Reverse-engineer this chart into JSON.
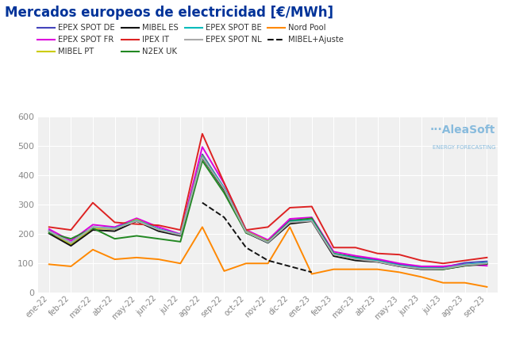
{
  "title": "Mercados europeos de electricidad [€/MWh]",
  "title_color": "#003399",
  "background_color": "#ffffff",
  "plot_bg_color": "#f0f0f0",
  "x_labels": [
    "ene-22",
    "feb-22",
    "mar-22",
    "abr-22",
    "may-22",
    "jun-22",
    "jul-22",
    "ago-22",
    "sep-22",
    "oct-22",
    "nov-22",
    "dic-22",
    "ene-23",
    "feb-23",
    "mar-23",
    "abr-23",
    "may-23",
    "jun-23",
    "jul-23",
    "ago-23",
    "sep-23"
  ],
  "ylim": [
    0,
    600
  ],
  "yticks": [
    0,
    100,
    200,
    300,
    400,
    500,
    600
  ],
  "series": [
    {
      "name": "EPEX SPOT DE",
      "color": "#4444bb",
      "dashed": false,
      "values": [
        210,
        165,
        220,
        215,
        248,
        215,
        195,
        470,
        355,
        210,
        175,
        245,
        250,
        130,
        120,
        110,
        95,
        85,
        85,
        100,
        105
      ]
    },
    {
      "name": "EPEX SPOT FR",
      "color": "#dd00dd",
      "dashed": false,
      "values": [
        215,
        175,
        230,
        222,
        252,
        222,
        198,
        495,
        370,
        212,
        178,
        250,
        255,
        138,
        124,
        113,
        98,
        88,
        88,
        95,
        90
      ]
    },
    {
      "name": "MIBEL PT",
      "color": "#cccc00",
      "dashed": false,
      "values": [
        205,
        163,
        218,
        215,
        248,
        212,
        195,
        465,
        352,
        208,
        173,
        238,
        248,
        128,
        113,
        106,
        90,
        81,
        80,
        93,
        98
      ]
    },
    {
      "name": "MIBEL ES",
      "color": "#111111",
      "dashed": false,
      "values": [
        200,
        158,
        212,
        208,
        242,
        208,
        192,
        458,
        348,
        203,
        168,
        233,
        242,
        123,
        108,
        103,
        88,
        78,
        78,
        90,
        96
      ]
    },
    {
      "name": "IPEX IT",
      "color": "#dd2222",
      "dashed": false,
      "values": [
        222,
        212,
        305,
        238,
        232,
        228,
        212,
        540,
        372,
        212,
        222,
        288,
        292,
        152,
        152,
        132,
        128,
        108,
        98,
        108,
        118
      ]
    },
    {
      "name": "N2EX UK",
      "color": "#228822",
      "dashed": false,
      "values": [
        202,
        182,
        218,
        182,
        192,
        182,
        172,
        448,
        338,
        202,
        172,
        242,
        252,
        132,
        118,
        105,
        90,
        81,
        78,
        91,
        98
      ]
    },
    {
      "name": "EPEX SPOT BE",
      "color": "#00bbbb",
      "dashed": false,
      "values": [
        208,
        168,
        222,
        218,
        245,
        215,
        196,
        463,
        355,
        206,
        170,
        240,
        246,
        130,
        116,
        106,
        91,
        82,
        81,
        94,
        100
      ]
    },
    {
      "name": "EPEX SPOT NL",
      "color": "#aaaaaa",
      "dashed": false,
      "values": [
        208,
        168,
        222,
        216,
        243,
        213,
        195,
        460,
        352,
        205,
        170,
        238,
        243,
        128,
        113,
        104,
        89,
        80,
        80,
        92,
        98
      ]
    },
    {
      "name": "Nord Pool",
      "color": "#ff8800",
      "dashed": false,
      "values": [
        95,
        88,
        145,
        112,
        118,
        112,
        98,
        222,
        72,
        98,
        98,
        222,
        62,
        78,
        78,
        78,
        68,
        52,
        32,
        32,
        18
      ]
    },
    {
      "name": "MIBEL+Ajuste",
      "color": "#111111",
      "dashed": true,
      "values": [
        null,
        null,
        null,
        null,
        null,
        null,
        null,
        305,
        255,
        152,
        108,
        null,
        68,
        null,
        null,
        null,
        null,
        null,
        null,
        null,
        null
      ]
    }
  ],
  "legend_order": [
    [
      "EPEX SPOT DE",
      "EPEX SPOT FR",
      "MIBEL PT",
      "MIBEL ES"
    ],
    [
      "IPEX IT",
      "N2EX UK",
      "EPEX SPOT BE",
      "EPEX SPOT NL"
    ],
    [
      "Nord Pool",
      "MIBEL+Ajuste"
    ]
  ]
}
